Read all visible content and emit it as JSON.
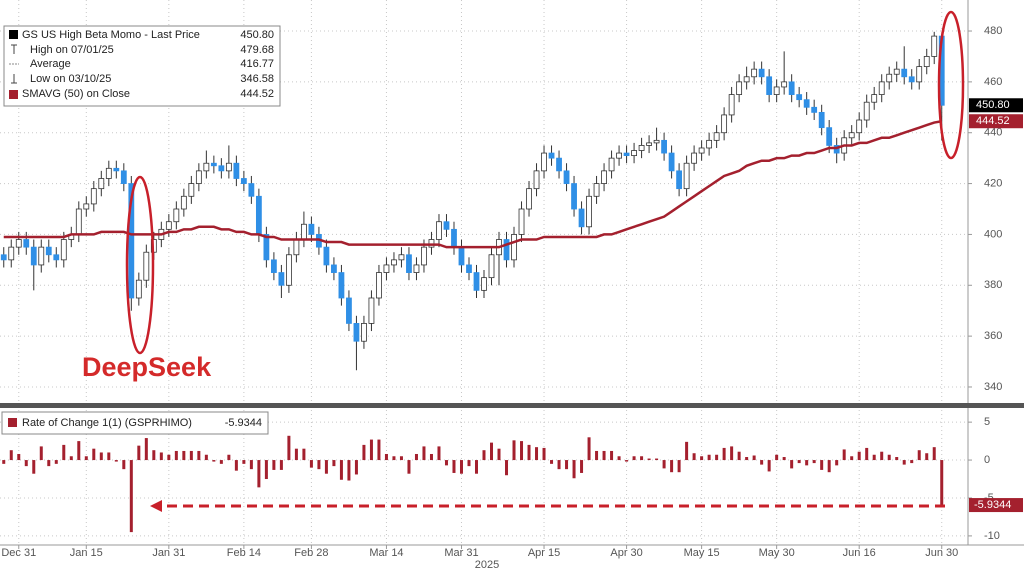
{
  "chart_data": [
    {
      "type": "candlestick",
      "series": [
        {
          "name": "GS US High Beta Momo - Last Price",
          "up_color": "#ffffff",
          "down_color": "#2f8fe6",
          "open": [
            392,
            390,
            395,
            398,
            395,
            388,
            395,
            392,
            390,
            398,
            400,
            410,
            412,
            418,
            422,
            426,
            425,
            420,
            375,
            382,
            393,
            398,
            402,
            405,
            410,
            415,
            420,
            425,
            428,
            427,
            425,
            428,
            422,
            420,
            415,
            400,
            390,
            385,
            380,
            392,
            398,
            404,
            400,
            395,
            388,
            385,
            375,
            365,
            358,
            365,
            375,
            385,
            388,
            390,
            392,
            385,
            388,
            395,
            398,
            405,
            402,
            395,
            388,
            385,
            378,
            383,
            392,
            398,
            390,
            400,
            410,
            418,
            425,
            432,
            430,
            425,
            420,
            410,
            403,
            415,
            420,
            425,
            430,
            432,
            431,
            433,
            435,
            436,
            437,
            432,
            425,
            418,
            428,
            432,
            434,
            437,
            440,
            447,
            455,
            460,
            462,
            465,
            462,
            455,
            458,
            460,
            455,
            453,
            450,
            448,
            442,
            435,
            432,
            438,
            440,
            445,
            452,
            455,
            460,
            463,
            465,
            462,
            460,
            466,
            470,
            478
          ],
          "high": [
            395,
            398,
            401,
            401,
            398,
            398,
            398,
            395,
            401,
            403,
            413,
            415,
            421,
            425,
            429,
            429,
            428,
            423,
            385,
            396,
            401,
            405,
            408,
            413,
            418,
            423,
            428,
            433,
            431,
            430,
            435,
            431,
            425,
            423,
            418,
            403,
            393,
            388,
            395,
            401,
            409,
            407,
            403,
            398,
            391,
            388,
            378,
            368,
            368,
            378,
            388,
            391,
            393,
            395,
            395,
            391,
            398,
            401,
            408,
            408,
            405,
            398,
            391,
            388,
            386,
            395,
            401,
            401,
            403,
            413,
            421,
            428,
            435,
            435,
            433,
            428,
            423,
            413,
            418,
            423,
            428,
            433,
            435,
            435,
            436,
            438,
            439,
            442,
            440,
            435,
            428,
            431,
            435,
            437,
            440,
            443,
            450,
            458,
            463,
            466,
            468,
            468,
            465,
            461,
            472,
            463,
            458,
            456,
            453,
            451,
            445,
            438,
            441,
            443,
            448,
            455,
            458,
            463,
            466,
            468,
            474,
            465,
            469,
            473,
            479.68,
            479
          ],
          "low": [
            387,
            387,
            392,
            392,
            378,
            385,
            389,
            387,
            387,
            395,
            397,
            407,
            409,
            415,
            419,
            422,
            417,
            370,
            372,
            379,
            390,
            395,
            399,
            402,
            407,
            412,
            417,
            422,
            424,
            422,
            422,
            419,
            417,
            412,
            397,
            387,
            382,
            375,
            377,
            389,
            395,
            397,
            392,
            385,
            382,
            372,
            362,
            346.58,
            355,
            362,
            372,
            382,
            385,
            387,
            382,
            382,
            385,
            392,
            395,
            399,
            392,
            385,
            382,
            375,
            375,
            380,
            380,
            387,
            387,
            397,
            407,
            415,
            422,
            427,
            422,
            417,
            407,
            400,
            400,
            412,
            417,
            422,
            427,
            428,
            428,
            430,
            432,
            433,
            429,
            422,
            415,
            415,
            425,
            429,
            431,
            434,
            437,
            444,
            452,
            457,
            459,
            459,
            452,
            452,
            455,
            452,
            450,
            447,
            445,
            439,
            432,
            428,
            429,
            435,
            437,
            442,
            449,
            452,
            457,
            460,
            459,
            457,
            457,
            463,
            467,
            437
          ],
          "close": [
            390,
            395,
            398,
            395,
            388,
            395,
            392,
            390,
            398,
            400,
            410,
            412,
            418,
            422,
            426,
            425,
            420,
            375,
            382,
            393,
            398,
            402,
            405,
            410,
            415,
            420,
            425,
            428,
            427,
            425,
            428,
            422,
            420,
            415,
            400,
            390,
            385,
            380,
            392,
            398,
            404,
            400,
            395,
            388,
            385,
            375,
            365,
            358,
            365,
            375,
            385,
            388,
            390,
            392,
            385,
            388,
            395,
            398,
            405,
            402,
            395,
            388,
            385,
            378,
            383,
            392,
            398,
            390,
            400,
            410,
            418,
            425,
            432,
            430,
            425,
            420,
            410,
            403,
            415,
            420,
            425,
            430,
            432,
            431,
            433,
            435,
            436,
            437,
            432,
            425,
            418,
            428,
            432,
            434,
            437,
            440,
            447,
            455,
            460,
            462,
            465,
            462,
            455,
            458,
            460,
            455,
            453,
            450,
            448,
            442,
            435,
            432,
            438,
            440,
            445,
            452,
            455,
            460,
            463,
            465,
            462,
            460,
            466,
            470,
            478,
            450.8
          ]
        },
        {
          "name": "SMAVG (50)  on Close",
          "type": "line",
          "color": "#a4202e",
          "values": [
            399,
            399,
            399,
            399,
            399,
            399,
            399,
            399,
            399,
            400,
            400,
            400,
            400,
            401,
            401,
            401,
            401,
            400,
            400,
            400,
            400,
            400,
            401,
            401,
            402,
            402,
            403,
            403,
            403,
            402,
            402,
            401,
            401,
            400,
            400,
            399,
            399,
            398,
            398,
            398,
            398,
            398,
            398,
            397,
            397,
            397,
            396,
            396,
            396,
            396,
            396,
            396,
            396,
            396,
            396,
            396,
            396,
            396,
            396,
            395,
            395,
            395,
            395,
            395,
            395,
            395,
            395,
            396,
            397,
            398,
            398,
            398,
            399,
            399,
            399,
            399,
            399,
            399,
            399,
            399,
            400,
            400,
            401,
            402,
            403,
            404,
            405,
            406,
            407,
            409,
            411,
            413,
            415,
            417,
            419,
            421,
            423,
            424,
            425,
            427,
            428,
            429,
            429,
            430,
            430,
            431,
            431,
            432,
            432,
            433,
            434,
            434,
            435,
            435,
            436,
            436,
            437,
            438,
            438,
            439,
            440,
            441,
            442,
            443,
            444,
            444.52
          ]
        }
      ],
      "legend": [
        {
          "label": "GS US High Beta Momo - Last Price",
          "value": "450.80"
        },
        {
          "label": "High on 07/01/25",
          "value": "479.68"
        },
        {
          "label": "Average",
          "value": "416.77"
        },
        {
          "label": "Low on 03/10/25",
          "value": "346.58"
        },
        {
          "label": "SMAVG (50)  on Close",
          "value": "444.52"
        }
      ],
      "annotation": "DeepSeek",
      "xlim": [
        -0.5,
        128.5
      ],
      "xticks": [
        {
          "value": 2,
          "label": "Dec 31"
        },
        {
          "value": 11,
          "label": "Jan 15"
        },
        {
          "value": 22,
          "label": "Jan 31"
        },
        {
          "value": 32,
          "label": "Feb 14"
        },
        {
          "value": 41,
          "label": "Feb 28"
        },
        {
          "value": 51,
          "label": "Mar 14"
        },
        {
          "value": 61,
          "label": "Mar 31"
        },
        {
          "value": 72,
          "label": "Apr 15"
        },
        {
          "value": 83,
          "label": "Apr 30"
        },
        {
          "value": 93,
          "label": "May 15"
        },
        {
          "value": 103,
          "label": "May 30"
        },
        {
          "value": 114,
          "label": "Jun 16"
        },
        {
          "value": 125,
          "label": "Jun 30"
        }
      ],
      "x_label": "2025",
      "ylim": [
        333.7,
        492.2
      ],
      "yticks": [
        340,
        360,
        380,
        400,
        420,
        440,
        460,
        480
      ],
      "grid": true
    },
    {
      "type": "bar",
      "title": "Rate of Change 1(1) (GSPRHIMO)",
      "color": "#a4202e",
      "values": [
        -0.5,
        1.3,
        0.8,
        -0.8,
        -1.8,
        1.8,
        -0.8,
        -0.5,
        2,
        0.5,
        2.5,
        0.5,
        1.5,
        1,
        1,
        -0.2,
        -1.2,
        -9.5,
        1.9,
        2.9,
        1.3,
        1,
        0.7,
        1.2,
        1.2,
        1.2,
        1.2,
        0.7,
        -0.2,
        -0.5,
        0.7,
        -1.4,
        -0.5,
        -1.2,
        -3.6,
        -2.5,
        -1.3,
        -1.3,
        3.2,
        1.5,
        1.5,
        -1,
        -1.2,
        -1.8,
        -0.8,
        -2.6,
        -2.7,
        -1.9,
        2,
        2.7,
        2.7,
        0.8,
        0.5,
        0.5,
        -1.8,
        0.8,
        1.8,
        0.8,
        1.8,
        -0.7,
        -1.7,
        -1.8,
        -0.8,
        -1.8,
        1.3,
        2.3,
        1.5,
        -2,
        2.6,
        2.5,
        2,
        1.7,
        1.6,
        -0.5,
        -1.2,
        -1.2,
        -2.4,
        -1.7,
        3,
        1.2,
        1.2,
        1.2,
        0.5,
        -0.2,
        0.5,
        0.5,
        0.2,
        0.2,
        -1.1,
        -1.6,
        -1.6,
        2.4,
        0.9,
        0.5,
        0.7,
        0.7,
        1.6,
        1.8,
        1.1,
        0.4,
        0.6,
        -0.6,
        -1.5,
        0.7,
        0.4,
        -1.1,
        -0.4,
        -0.7,
        -0.4,
        -1.3,
        -1.6,
        -0.7,
        1.4,
        0.5,
        1.1,
        1.6,
        0.7,
        1.1,
        0.7,
        0.4,
        -0.6,
        -0.4,
        1.3,
        0.9,
        1.7,
        -5.9344
      ],
      "xlim": [
        -0.5,
        128.5
      ],
      "ylim": [
        -11.2,
        6.6
      ],
      "yticks": [
        5,
        0,
        -5,
        -10
      ],
      "grid": true
    }
  ]
}
